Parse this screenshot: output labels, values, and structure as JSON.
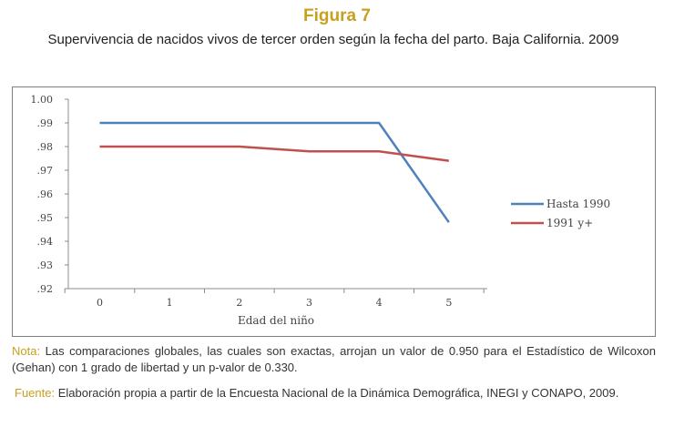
{
  "figure": {
    "label": "Figura 7",
    "title": "Supervivencia de nacidos vivos de tercer orden según la fecha del parto. Baja California. 2009"
  },
  "notes": {
    "nota_label": "Nota:",
    "nota_text": " Las comparaciones globales, las cuales son exactas, arrojan un valor de  0.950 para el Estadístico de Wilcoxon (Gehan) con 1 grado de libertad y un p-valor de  0.330.",
    "fuente_label": "Fuente:",
    "fuente_text": " Elaboración propia a partir de la Encuesta Nacional de la Dinámica Demográfica, INEGI y CONAPO, 2009."
  },
  "chart_data": {
    "type": "line",
    "title": "",
    "xlabel": "Edad del niño",
    "ylabel": "",
    "x": [
      0,
      1,
      2,
      3,
      4,
      5
    ],
    "xlim": [
      -0.45,
      5.55
    ],
    "ylim": [
      0.92,
      1.0
    ],
    "y_ticks": [
      1.0,
      0.99,
      0.98,
      0.97,
      0.96,
      0.95,
      0.94,
      0.93,
      0.92
    ],
    "y_tick_labels": [
      "1.00",
      ".99",
      ".98",
      ".97",
      ".96",
      ".95",
      ".94",
      ".93",
      ".92"
    ],
    "x_tick_labels": [
      "0",
      "1",
      "2",
      "3",
      "4",
      "5"
    ],
    "grid": false,
    "legend_position": "right",
    "series": [
      {
        "name": "Hasta 1990",
        "color": "#4f81bd",
        "values": [
          0.99,
          0.99,
          0.99,
          0.99,
          0.99,
          0.948
        ]
      },
      {
        "name": "1991 y+",
        "color": "#c0504d",
        "values": [
          0.98,
          0.98,
          0.98,
          0.978,
          0.978,
          0.974
        ]
      }
    ]
  }
}
